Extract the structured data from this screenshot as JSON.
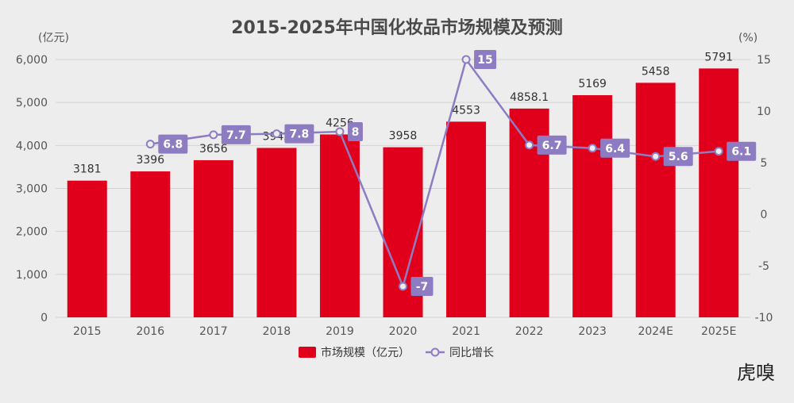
{
  "chart_data": {
    "type": "bar",
    "title": "2015-2025年中国化妆品市场规模及预测",
    "categories": [
      "2015",
      "2016",
      "2017",
      "2018",
      "2019",
      "2020",
      "2021",
      "2022",
      "2023",
      "2024E",
      "2025E"
    ],
    "bar_value_labels": [
      "3181",
      "3396",
      "3656",
      "3942",
      "4256",
      "3958",
      "4553",
      "4858.1",
      "5169",
      "5458",
      "5791"
    ],
    "series": [
      {
        "name": "市场规模（亿元）",
        "type": "bar",
        "axis": "left",
        "color": "#e0001b",
        "values": [
          3181,
          3396,
          3656,
          3942,
          4256,
          3958,
          4553,
          4858.1,
          5169,
          5458,
          5791
        ]
      },
      {
        "name": "同比增长",
        "type": "line",
        "axis": "right",
        "color": "#8e7cc3",
        "values": [
          null,
          6.8,
          7.7,
          7.8,
          8,
          -7,
          15,
          6.7,
          6.4,
          5.6,
          6.1
        ]
      }
    ],
    "y_left": {
      "unit": "(亿元)",
      "range": [
        0,
        6000
      ],
      "ticks": [
        0,
        1000,
        2000,
        3000,
        4000,
        5000,
        6000
      ],
      "tick_labels": [
        "0",
        "1,000",
        "2,000",
        "3,000",
        "4,000",
        "5,000",
        "6,000"
      ]
    },
    "y_right": {
      "unit": "(%)",
      "range": [
        -10,
        15
      ],
      "ticks": [
        -10,
        -5,
        0,
        5,
        10,
        15
      ],
      "tick_labels": [
        "-10",
        "-5",
        "0",
        "5",
        "10",
        "15"
      ]
    },
    "grid": true,
    "legend_position": "bottom"
  },
  "watermark": "虎嗅"
}
